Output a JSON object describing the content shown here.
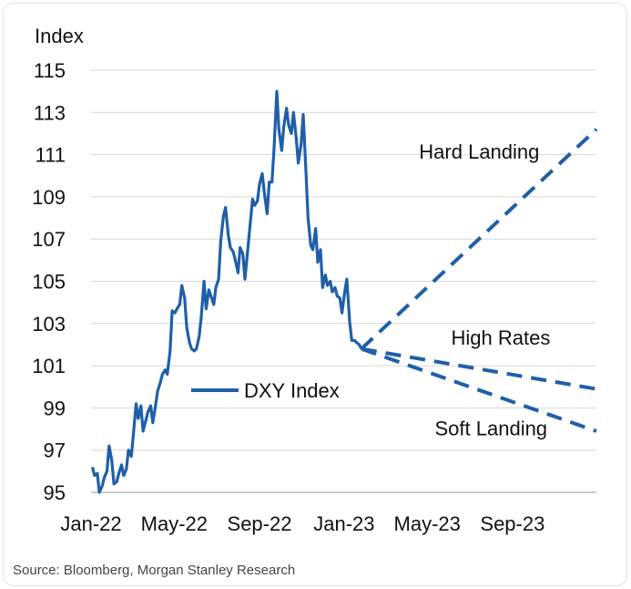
{
  "source": "Source: Bloomberg, Morgan Stanley Research",
  "chart_data": {
    "type": "line",
    "title": "",
    "xlabel": "",
    "ylabel": "Index",
    "ylim": [
      95,
      115
    ],
    "yticks": [
      95,
      97,
      99,
      101,
      103,
      105,
      107,
      109,
      111,
      113,
      115
    ],
    "xlim": [
      "2022-01-01",
      "2023-12-31"
    ],
    "xticks": [
      {
        "label": "Jan-22",
        "date": "2022-01-01"
      },
      {
        "label": "May-22",
        "date": "2022-05-01"
      },
      {
        "label": "Sep-22",
        "date": "2022-09-01"
      },
      {
        "label": "Jan-23",
        "date": "2023-01-01"
      },
      {
        "label": "May-23",
        "date": "2023-05-01"
      },
      {
        "label": "Sep-23",
        "date": "2023-09-01"
      }
    ],
    "grid": "horizontal",
    "legend": {
      "position": "center-left",
      "entries": [
        "DXY Index"
      ]
    },
    "colors": {
      "series": "#1f5fa8"
    },
    "series": [
      {
        "name": "DXY Index",
        "style": "solid",
        "points": [
          [
            "2022-01-03",
            96.2
          ],
          [
            "2022-01-06",
            95.8
          ],
          [
            "2022-01-10",
            95.9
          ],
          [
            "2022-01-13",
            95.0
          ],
          [
            "2022-01-17",
            95.3
          ],
          [
            "2022-01-20",
            95.7
          ],
          [
            "2022-01-24",
            96.0
          ],
          [
            "2022-01-27",
            97.2
          ],
          [
            "2022-01-31",
            96.5
          ],
          [
            "2022-02-03",
            95.4
          ],
          [
            "2022-02-07",
            95.5
          ],
          [
            "2022-02-10",
            95.9
          ],
          [
            "2022-02-14",
            96.3
          ],
          [
            "2022-02-17",
            95.8
          ],
          [
            "2022-02-21",
            96.1
          ],
          [
            "2022-02-24",
            97.0
          ],
          [
            "2022-02-28",
            96.7
          ],
          [
            "2022-03-03",
            97.7
          ],
          [
            "2022-03-07",
            99.2
          ],
          [
            "2022-03-10",
            98.5
          ],
          [
            "2022-03-14",
            99.1
          ],
          [
            "2022-03-17",
            97.9
          ],
          [
            "2022-03-21",
            98.4
          ],
          [
            "2022-03-24",
            98.8
          ],
          [
            "2022-03-28",
            99.1
          ],
          [
            "2022-03-31",
            98.3
          ],
          [
            "2022-04-04",
            99.1
          ],
          [
            "2022-04-07",
            99.8
          ],
          [
            "2022-04-11",
            100.2
          ],
          [
            "2022-04-14",
            100.6
          ],
          [
            "2022-04-18",
            100.8
          ],
          [
            "2022-04-21",
            100.6
          ],
          [
            "2022-04-25",
            101.7
          ],
          [
            "2022-04-28",
            103.6
          ],
          [
            "2022-05-02",
            103.5
          ],
          [
            "2022-05-05",
            103.7
          ],
          [
            "2022-05-09",
            103.9
          ],
          [
            "2022-05-12",
            104.8
          ],
          [
            "2022-05-16",
            104.2
          ],
          [
            "2022-05-19",
            102.8
          ],
          [
            "2022-05-23",
            102.1
          ],
          [
            "2022-05-26",
            101.8
          ],
          [
            "2022-05-30",
            101.7
          ],
          [
            "2022-06-02",
            101.8
          ],
          [
            "2022-06-06",
            102.4
          ],
          [
            "2022-06-09",
            103.3
          ],
          [
            "2022-06-13",
            105.0
          ],
          [
            "2022-06-16",
            103.7
          ],
          [
            "2022-06-20",
            104.6
          ],
          [
            "2022-06-23",
            104.3
          ],
          [
            "2022-06-27",
            103.9
          ],
          [
            "2022-06-30",
            104.7
          ],
          [
            "2022-07-04",
            105.1
          ],
          [
            "2022-07-07",
            106.9
          ],
          [
            "2022-07-11",
            108.1
          ],
          [
            "2022-07-14",
            108.5
          ],
          [
            "2022-07-18",
            107.2
          ],
          [
            "2022-07-21",
            106.6
          ],
          [
            "2022-07-25",
            106.4
          ],
          [
            "2022-07-28",
            106.0
          ],
          [
            "2022-08-01",
            105.4
          ],
          [
            "2022-08-04",
            106.6
          ],
          [
            "2022-08-08",
            106.3
          ],
          [
            "2022-08-11",
            105.1
          ],
          [
            "2022-08-15",
            106.5
          ],
          [
            "2022-08-18",
            107.5
          ],
          [
            "2022-08-22",
            108.9
          ],
          [
            "2022-08-25",
            108.6
          ],
          [
            "2022-08-29",
            108.8
          ],
          [
            "2022-09-01",
            109.6
          ],
          [
            "2022-09-05",
            110.1
          ],
          [
            "2022-09-08",
            109.2
          ],
          [
            "2022-09-12",
            108.2
          ],
          [
            "2022-09-15",
            109.7
          ],
          [
            "2022-09-19",
            109.7
          ],
          [
            "2022-09-22",
            111.3
          ],
          [
            "2022-09-26",
            114.0
          ],
          [
            "2022-09-29",
            112.2
          ],
          [
            "2022-10-03",
            111.2
          ],
          [
            "2022-10-06",
            112.3
          ],
          [
            "2022-10-10",
            113.2
          ],
          [
            "2022-10-13",
            112.4
          ],
          [
            "2022-10-17",
            112.0
          ],
          [
            "2022-10-20",
            113.0
          ],
          [
            "2022-10-24",
            111.8
          ],
          [
            "2022-10-27",
            110.6
          ],
          [
            "2022-10-31",
            111.5
          ],
          [
            "2022-11-03",
            112.9
          ],
          [
            "2022-11-07",
            110.2
          ],
          [
            "2022-11-10",
            108.0
          ],
          [
            "2022-11-14",
            106.7
          ],
          [
            "2022-11-17",
            106.5
          ],
          [
            "2022-11-21",
            107.5
          ],
          [
            "2022-11-24",
            105.9
          ],
          [
            "2022-11-28",
            106.5
          ],
          [
            "2022-12-01",
            104.7
          ],
          [
            "2022-12-05",
            105.3
          ],
          [
            "2022-12-08",
            104.8
          ],
          [
            "2022-12-12",
            105.0
          ],
          [
            "2022-12-15",
            104.5
          ],
          [
            "2022-12-19",
            104.7
          ],
          [
            "2022-12-22",
            104.3
          ],
          [
            "2022-12-26",
            104.2
          ],
          [
            "2022-12-29",
            103.5
          ],
          [
            "2023-01-02",
            104.5
          ],
          [
            "2023-01-05",
            105.1
          ],
          [
            "2023-01-09",
            103.1
          ],
          [
            "2023-01-12",
            102.2
          ],
          [
            "2023-01-16",
            102.2
          ],
          [
            "2023-01-19",
            102.1
          ],
          [
            "2023-01-23",
            102.0
          ],
          [
            "2023-01-26",
            101.8
          ]
        ]
      },
      {
        "name": "Hard Landing",
        "style": "dashed",
        "points": [
          [
            "2023-01-26",
            101.8
          ],
          [
            "2023-12-31",
            112.2
          ]
        ]
      },
      {
        "name": "High Rates",
        "style": "dashed",
        "points": [
          [
            "2023-01-26",
            101.8
          ],
          [
            "2023-12-31",
            99.9
          ]
        ]
      },
      {
        "name": "Soft Landing",
        "style": "dashed",
        "points": [
          [
            "2023-01-26",
            101.8
          ],
          [
            "2023-12-31",
            97.9
          ]
        ]
      }
    ],
    "annotations": [
      {
        "text": "Hard Landing",
        "date": "2023-07-15",
        "value": 110.8
      },
      {
        "text": "High Rates",
        "date": "2023-08-15",
        "value": 102.0
      },
      {
        "text": "Soft Landing",
        "date": "2023-08-01",
        "value": 97.7
      }
    ]
  }
}
